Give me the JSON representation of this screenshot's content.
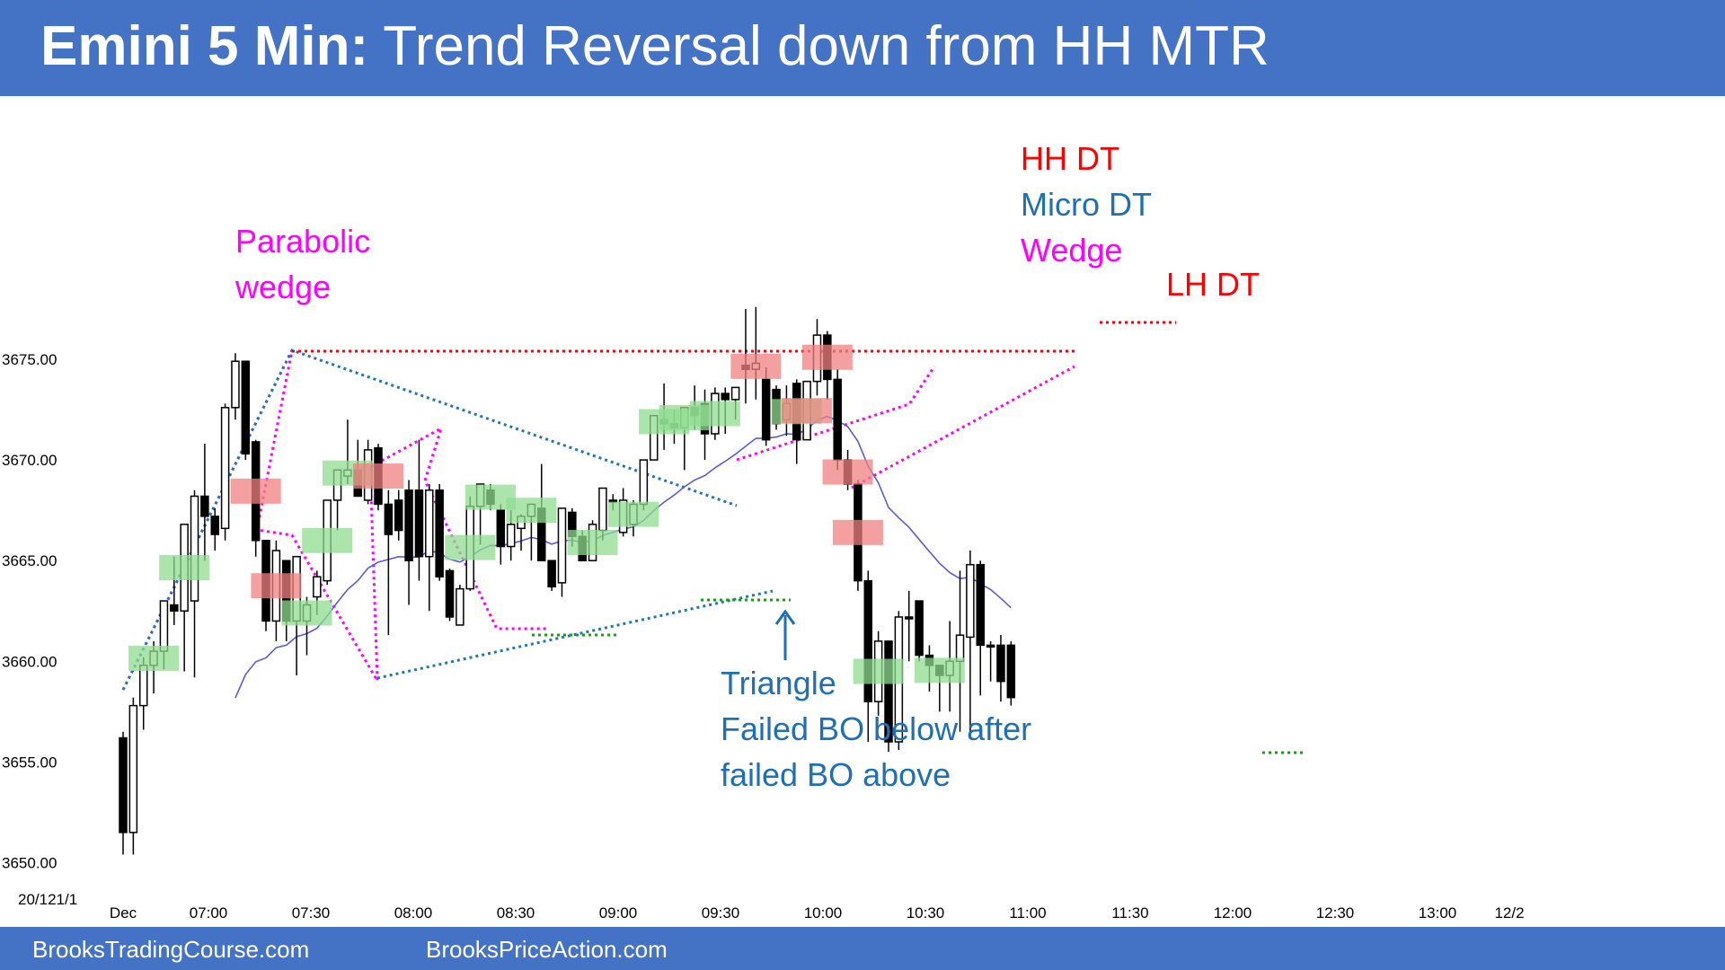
{
  "header": {
    "title_bold": "Emini 5 Min:",
    "title_rest": " Trend Reversal down from HH MTR"
  },
  "footer": {
    "left": "BrooksTradingCourse.com",
    "right": "BrooksPriceAction.com"
  },
  "colors": {
    "banner": "#4472c4",
    "bull_bar": "#ffffff",
    "bear_bar": "#000000",
    "ema": "#5b5bd6",
    "signal_buy": "#8fdc8f",
    "signal_sell": "#f08080",
    "red_text": "#ff0000",
    "blue_text": "#1f6fb5",
    "magenta_text": "#ff00ff",
    "trend_blue": "#1f77b4"
  },
  "chart_data": {
    "type": "candlestick",
    "date_label": "20/121/1",
    "y_ticks": [
      "3675.00",
      "3670.00",
      "3665.00",
      "3660.00",
      "3655.00",
      "3650.00"
    ],
    "ylim": [
      3649,
      3676.5
    ],
    "x_ticks": [
      "Dec",
      "07:00",
      "07:30",
      "08:00",
      "08:30",
      "09:00",
      "09:30",
      "10:00",
      "10:30",
      "11:00",
      "11:30",
      "12:00",
      "12:30",
      "13:00",
      "12/2"
    ],
    "annotations": [
      {
        "text": "Parabolic",
        "color": "magenta"
      },
      {
        "text": "wedge",
        "color": "magenta"
      },
      {
        "text": "HH DT",
        "color": "red"
      },
      {
        "text": "Micro DT",
        "color": "blue"
      },
      {
        "text": "Wedge",
        "color": "magenta"
      },
      {
        "text": "LH DT",
        "color": "red"
      },
      {
        "text": "Triangle",
        "color": "blue"
      },
      {
        "text": "Failed BO below after",
        "color": "blue"
      },
      {
        "text": "failed BO above",
        "color": "blue"
      }
    ],
    "bars": [
      [
        3656.2,
        3656.5,
        3650.4,
        3651.5
      ],
      [
        3651.5,
        3658.2,
        3650.4,
        3657.8
      ],
      [
        3657.8,
        3660.2,
        3656.6,
        3659.8
      ],
      [
        3659.8,
        3661.0,
        3658.4,
        3660.5
      ],
      [
        3660.5,
        3663.0,
        3659.6,
        3663.0
      ],
      [
        3662.8,
        3665.2,
        3661.8,
        3662.5
      ],
      [
        3662.5,
        3666.5,
        3659.5,
        3666.8
      ],
      [
        3663.0,
        3668.5,
        3659.2,
        3668.2
      ],
      [
        3668.2,
        3670.8,
        3665.0,
        3667.2
      ],
      [
        3667.2,
        3667.6,
        3665.5,
        3666.3
      ],
      [
        3666.6,
        3672.8,
        3666.0,
        3672.6
      ],
      [
        3672.6,
        3675.3,
        3672.0,
        3674.9
      ],
      [
        3674.9,
        3674.9,
        3670.0,
        3670.3
      ],
      [
        3670.9,
        3671.0,
        3665.2,
        3666.0
      ],
      [
        3666.0,
        3666.0,
        3661.5,
        3662.0
      ],
      [
        3662.0,
        3666.0,
        3661.0,
        3665.5
      ],
      [
        3665.0,
        3665.0,
        3661.0,
        3662.0
      ],
      [
        3662.0,
        3665.2,
        3659.3,
        3665.2
      ],
      [
        3662.0,
        3663.2,
        3660.3,
        3662.8
      ],
      [
        3663.2,
        3664.5,
        3662.3,
        3664.2
      ],
      [
        3664.0,
        3665.5,
        3663.8,
        3668.0
      ],
      [
        3668.0,
        3668.5,
        3666.5,
        3669.5
      ],
      [
        3669.2,
        3672.0,
        3668.8,
        3669.5
      ],
      [
        3669.5,
        3671.0,
        3668.5,
        3668.2
      ],
      [
        3668.0,
        3671.0,
        3667.8,
        3670.5
      ],
      [
        3670.6,
        3670.8,
        3667.5,
        3667.8
      ],
      [
        3667.8,
        3668.5,
        3661.3,
        3666.3
      ],
      [
        3668.0,
        3668.5,
        3666.0,
        3666.5
      ],
      [
        3668.5,
        3669.0,
        3662.8,
        3665.0
      ],
      [
        3668.5,
        3671.0,
        3664.0,
        3665.2
      ],
      [
        3665.2,
        3668.8,
        3662.5,
        3668.5
      ],
      [
        3668.5,
        3668.8,
        3664.0,
        3664.2
      ],
      [
        3664.5,
        3664.6,
        3662.0,
        3662.2
      ],
      [
        3661.8,
        3663.8,
        3661.8,
        3663.6
      ],
      [
        3663.6,
        3668.2,
        3663.5,
        3667.7
      ],
      [
        3667.7,
        3668.8,
        3665.8,
        3668.8
      ],
      [
        3668.5,
        3668.8,
        3667.5,
        3667.8
      ],
      [
        3667.5,
        3667.8,
        3664.8,
        3665.7
      ],
      [
        3665.7,
        3667.5,
        3665.0,
        3666.8
      ],
      [
        3666.6,
        3667.3,
        3665.5,
        3667.2
      ],
      [
        3667.2,
        3667.8,
        3665.0,
        3667.8
      ],
      [
        3667.6,
        3669.8,
        3666.0,
        3665.0
      ],
      [
        3665.0,
        3665.0,
        3663.5,
        3663.7
      ],
      [
        3663.9,
        3667.6,
        3663.2,
        3667.6
      ],
      [
        3667.4,
        3667.6,
        3665.7,
        3666.2
      ],
      [
        3666.2,
        3666.5,
        3665.0,
        3665.0
      ],
      [
        3665.0,
        3667.0,
        3665.0,
        3666.8
      ],
      [
        3666.5,
        3668.6,
        3666.0,
        3668.6
      ],
      [
        3668.0,
        3668.3,
        3667.5,
        3668.0
      ],
      [
        3666.4,
        3668.6,
        3666.2,
        3668.0
      ],
      [
        3666.8,
        3668.0,
        3666.2,
        3667.8
      ],
      [
        3667.8,
        3670.0,
        3667.5,
        3670.0
      ],
      [
        3670.0,
        3672.2,
        3670.0,
        3672.2
      ],
      [
        3672.0,
        3673.8,
        3670.5,
        3671.8
      ],
      [
        3671.8,
        3672.5,
        3670.8,
        3671.6
      ],
      [
        3671.6,
        3672.6,
        3669.5,
        3672.6
      ],
      [
        3672.6,
        3673.7,
        3671.5,
        3672.2
      ],
      [
        3672.8,
        3673.5,
        3670.0,
        3671.3
      ],
      [
        3671.3,
        3673.6,
        3671.0,
        3673.3
      ],
      [
        3673.3,
        3673.6,
        3671.3,
        3673.0
      ],
      [
        3673.0,
        3673.6,
        3672.0,
        3673.6
      ],
      [
        3674.7,
        3677.5,
        3672.8,
        3674.5
      ],
      [
        3674.5,
        3677.6,
        3673.0,
        3674.8
      ],
      [
        3674.0,
        3674.6,
        3670.7,
        3671.0
      ],
      [
        3673.5,
        3673.7,
        3671.5,
        3671.8
      ],
      [
        3672.0,
        3673.7,
        3671.2,
        3672.8
      ],
      [
        3673.8,
        3674.0,
        3669.8,
        3671.0
      ],
      [
        3671.0,
        3673.9,
        3671.0,
        3673.9
      ],
      [
        3673.9,
        3677.0,
        3673.2,
        3676.2
      ],
      [
        3676.2,
        3676.4,
        3673.0,
        3674.0
      ],
      [
        3674.0,
        3674.5,
        3669.5,
        3670.0
      ],
      [
        3670.0,
        3670.5,
        3668.5,
        3668.8
      ],
      [
        3668.8,
        3669.0,
        3663.5,
        3664.0
      ],
      [
        3664.0,
        3664.5,
        3656.0,
        3658.0
      ],
      [
        3658.0,
        3661.5,
        3657.3,
        3661.0
      ],
      [
        3661.0,
        3661.0,
        3655.5,
        3656.0
      ],
      [
        3656.0,
        3662.5,
        3655.6,
        3662.2
      ],
      [
        3662.2,
        3663.5,
        3660.0,
        3662.2
      ],
      [
        3663.0,
        3663.0,
        3660.0,
        3660.3
      ],
      [
        3660.3,
        3660.8,
        3658.5,
        3659.8
      ],
      [
        3659.8,
        3659.8,
        3657.5,
        3659.3
      ],
      [
        3659.3,
        3662.0,
        3657.5,
        3660.0
      ],
      [
        3660.0,
        3664.5,
        3656.5,
        3661.3
      ],
      [
        3661.2,
        3665.5,
        3656.5,
        3664.8
      ],
      [
        3664.8,
        3665.0,
        3658.3,
        3660.8
      ],
      [
        3660.8,
        3661.0,
        3659.0,
        3660.8
      ],
      [
        3660.8,
        3661.3,
        3658.0,
        3659.0
      ],
      [
        3660.8,
        3661.0,
        3657.8,
        3658.2
      ]
    ]
  }
}
